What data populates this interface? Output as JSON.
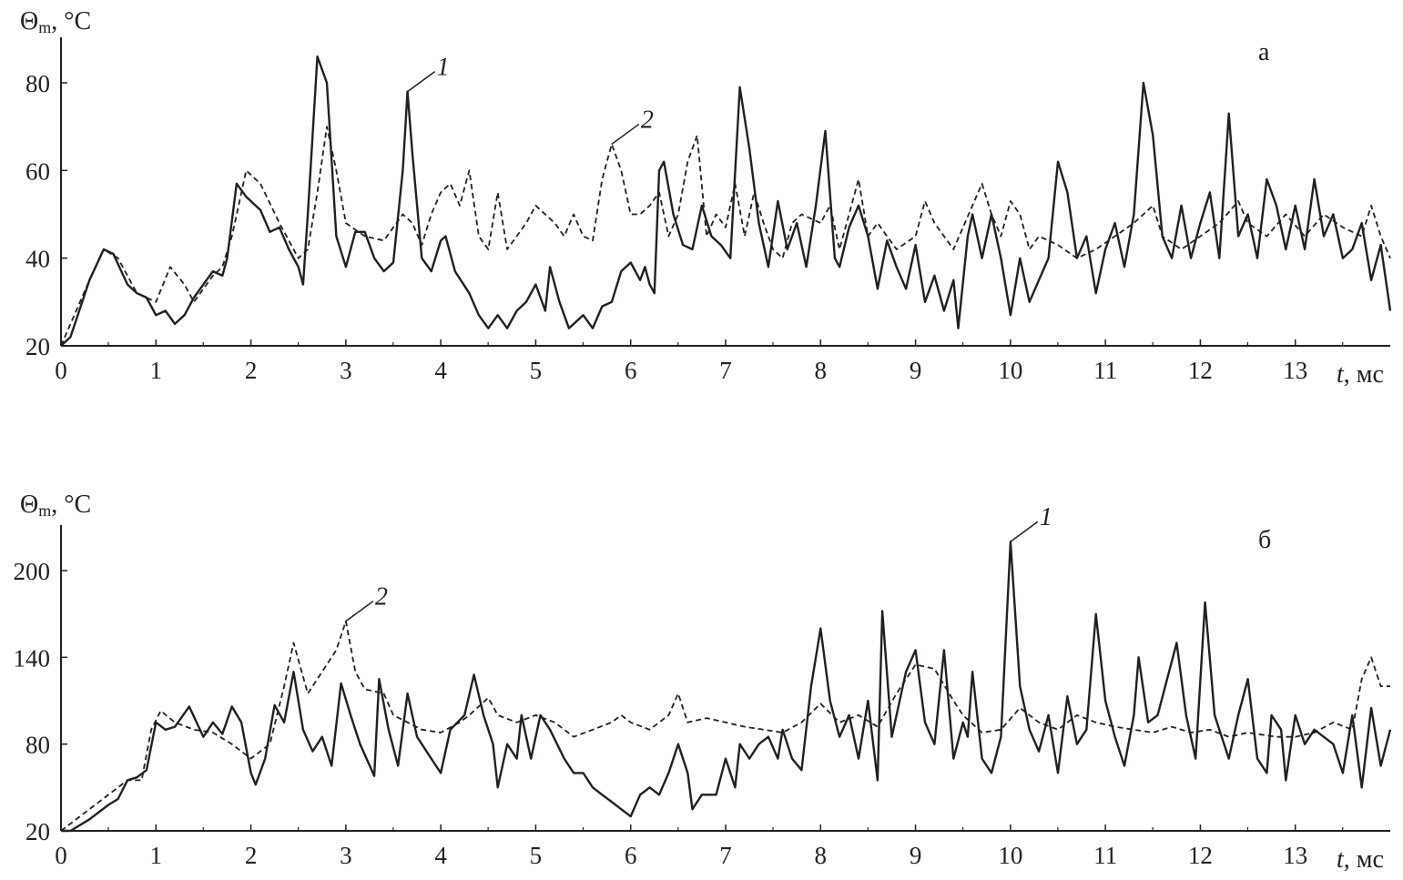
{
  "chart_data": [
    {
      "type": "line",
      "panel_label": "а",
      "ylabel": {
        "symbol": "Θ",
        "sub": "m",
        "unit": ", °C"
      },
      "xlabel": {
        "var": "t",
        "unit": ", мс"
      },
      "xlim": [
        0,
        14
      ],
      "ylim": [
        20,
        80
      ],
      "xticks": [
        0,
        1,
        2,
        3,
        4,
        5,
        6,
        7,
        8,
        9,
        10,
        11,
        12,
        13
      ],
      "yticks": [
        20,
        40,
        60,
        80
      ],
      "grid": false,
      "series": [
        {
          "name": "1",
          "style": "solid",
          "color": "#231f20",
          "x": [
            0,
            0.1,
            0.3,
            0.45,
            0.55,
            0.7,
            0.8,
            0.9,
            1.0,
            1.1,
            1.2,
            1.3,
            1.4,
            1.5,
            1.6,
            1.7,
            1.75,
            1.85,
            1.95,
            2.1,
            2.2,
            2.3,
            2.4,
            2.5,
            2.55,
            2.6,
            2.7,
            2.8,
            2.9,
            3.0,
            3.1,
            3.2,
            3.3,
            3.4,
            3.5,
            3.6,
            3.65,
            3.7,
            3.8,
            3.9,
            4.0,
            4.05,
            4.15,
            4.3,
            4.4,
            4.5,
            4.6,
            4.7,
            4.8,
            4.9,
            5.0,
            5.1,
            5.15,
            5.25,
            5.35,
            5.5,
            5.6,
            5.7,
            5.8,
            5.9,
            6.0,
            6.1,
            6.15,
            6.2,
            6.25,
            6.3,
            6.35,
            6.45,
            6.55,
            6.65,
            6.75,
            6.85,
            6.95,
            7.05,
            7.15,
            7.25,
            7.35,
            7.45,
            7.55,
            7.65,
            7.75,
            7.85,
            7.95,
            8.05,
            8.15,
            8.2,
            8.3,
            8.4,
            8.5,
            8.6,
            8.7,
            8.8,
            8.9,
            9.0,
            9.1,
            9.2,
            9.3,
            9.4,
            9.45,
            9.55,
            9.6,
            9.7,
            9.8,
            9.9,
            10.0,
            10.1,
            10.2,
            10.3,
            10.4,
            10.5,
            10.6,
            10.7,
            10.8,
            10.9,
            11.0,
            11.1,
            11.2,
            11.3,
            11.4,
            11.5,
            11.6,
            11.7,
            11.8,
            11.9,
            12.0,
            12.1,
            12.2,
            12.3,
            12.4,
            12.5,
            12.6,
            12.7,
            12.8,
            12.9,
            13.0,
            13.1,
            13.2,
            13.3,
            13.4,
            13.5,
            13.6,
            13.7,
            13.8,
            13.9,
            14.0
          ],
          "y": [
            20,
            22,
            35,
            42,
            41,
            34,
            32,
            31,
            27,
            28,
            25,
            27,
            31,
            34,
            37,
            36,
            40,
            57,
            54,
            51,
            46,
            47,
            42,
            38,
            34,
            50,
            86,
            80,
            45,
            38,
            46,
            46,
            40,
            37,
            39,
            60,
            78,
            64,
            40,
            37,
            44,
            45,
            37,
            32,
            27,
            24,
            27,
            24,
            28,
            30,
            34,
            28,
            38,
            30,
            24,
            27,
            24,
            29,
            30,
            37,
            39,
            35,
            38,
            34,
            32,
            60,
            62,
            50,
            43,
            42,
            52,
            45,
            43,
            40,
            79,
            65,
            48,
            38,
            53,
            42,
            48,
            38,
            52,
            69,
            40,
            38,
            47,
            52,
            45,
            33,
            44,
            38,
            33,
            43,
            30,
            36,
            28,
            35,
            24,
            45,
            50,
            40,
            50,
            40,
            27,
            40,
            30,
            35,
            40,
            62,
            55,
            40,
            45,
            32,
            42,
            48,
            38,
            50,
            80,
            68,
            45,
            40,
            52,
            40,
            48,
            55,
            40,
            73,
            45,
            50,
            40,
            58,
            52,
            42,
            52,
            42,
            58,
            45,
            50,
            40,
            42,
            48,
            35,
            43,
            28
          ]
        },
        {
          "name": "2",
          "style": "dashed",
          "color": "#231f20",
          "x": [
            0,
            0.3,
            0.45,
            0.6,
            0.8,
            1.0,
            1.15,
            1.3,
            1.4,
            1.6,
            1.7,
            1.8,
            1.95,
            2.1,
            2.3,
            2.5,
            2.6,
            2.7,
            2.8,
            2.9,
            3.0,
            3.2,
            3.4,
            3.6,
            3.7,
            3.8,
            3.9,
            4.0,
            4.1,
            4.2,
            4.3,
            4.4,
            4.5,
            4.6,
            4.7,
            4.9,
            5.0,
            5.2,
            5.3,
            5.4,
            5.5,
            5.6,
            5.7,
            5.8,
            5.9,
            6.0,
            6.1,
            6.2,
            6.3,
            6.4,
            6.5,
            6.6,
            6.7,
            6.8,
            6.9,
            7.0,
            7.1,
            7.2,
            7.3,
            7.4,
            7.5,
            7.6,
            7.7,
            7.8,
            8.0,
            8.1,
            8.2,
            8.4,
            8.5,
            8.6,
            8.7,
            8.8,
            9.0,
            9.1,
            9.2,
            9.3,
            9.4,
            9.5,
            9.6,
            9.7,
            9.8,
            9.9,
            10.0,
            10.1,
            10.2,
            10.3,
            10.5,
            10.7,
            10.9,
            11.1,
            11.3,
            11.5,
            11.6,
            11.8,
            12.0,
            12.2,
            12.4,
            12.5,
            12.7,
            12.9,
            13.1,
            13.3,
            13.5,
            13.7,
            13.8,
            13.9,
            14.0
          ],
          "y": [
            20,
            35,
            42,
            40,
            32,
            30,
            38,
            34,
            30,
            36,
            38,
            45,
            60,
            57,
            48,
            40,
            42,
            55,
            70,
            60,
            48,
            45,
            44,
            50,
            48,
            43,
            50,
            55,
            57,
            52,
            60,
            45,
            42,
            55,
            42,
            48,
            52,
            48,
            45,
            50,
            45,
            44,
            58,
            66,
            60,
            50,
            50,
            52,
            55,
            45,
            50,
            62,
            68,
            45,
            50,
            47,
            57,
            45,
            55,
            48,
            42,
            40,
            48,
            50,
            48,
            52,
            42,
            58,
            45,
            48,
            45,
            42,
            45,
            53,
            48,
            45,
            42,
            47,
            52,
            57,
            50,
            45,
            53,
            50,
            42,
            45,
            43,
            40,
            42,
            45,
            48,
            52,
            45,
            42,
            45,
            48,
            53,
            48,
            45,
            50,
            45,
            50,
            47,
            45,
            52,
            45,
            40
          ]
        }
      ],
      "annotations": [
        {
          "text": "1",
          "series": "1",
          "x": 3.65,
          "y": 78
        },
        {
          "text": "2",
          "series": "2",
          "x": 5.8,
          "y": 66
        }
      ]
    },
    {
      "type": "line",
      "panel_label": "б",
      "ylabel": {
        "symbol": "Θ",
        "sub": "m",
        "unit": ", °C"
      },
      "xlabel": {
        "var": "t",
        "unit": ", мс"
      },
      "xlim": [
        0,
        14
      ],
      "ylim": [
        20,
        200
      ],
      "xticks": [
        0,
        1,
        2,
        3,
        4,
        5,
        6,
        7,
        8,
        9,
        10,
        11,
        12,
        13
      ],
      "yticks": [
        20,
        80,
        140,
        200
      ],
      "grid": false,
      "series": [
        {
          "name": "1",
          "style": "solid",
          "color": "#231f20",
          "x": [
            0,
            0.1,
            0.3,
            0.5,
            0.6,
            0.7,
            0.8,
            0.9,
            1.0,
            1.1,
            1.2,
            1.35,
            1.5,
            1.6,
            1.7,
            1.8,
            1.9,
            2.0,
            2.05,
            2.15,
            2.25,
            2.35,
            2.45,
            2.55,
            2.65,
            2.75,
            2.85,
            2.95,
            3.05,
            3.15,
            3.3,
            3.35,
            3.45,
            3.55,
            3.65,
            3.75,
            3.9,
            4.0,
            4.1,
            4.25,
            4.35,
            4.45,
            4.55,
            4.6,
            4.7,
            4.8,
            4.85,
            4.95,
            5.05,
            5.15,
            5.3,
            5.4,
            5.5,
            5.6,
            5.7,
            5.8,
            5.9,
            6.0,
            6.1,
            6.2,
            6.3,
            6.4,
            6.5,
            6.6,
            6.65,
            6.75,
            6.9,
            7.0,
            7.1,
            7.15,
            7.25,
            7.35,
            7.45,
            7.55,
            7.6,
            7.7,
            7.8,
            7.9,
            8.0,
            8.1,
            8.2,
            8.3,
            8.4,
            8.5,
            8.6,
            8.65,
            8.75,
            8.9,
            9.0,
            9.1,
            9.2,
            9.3,
            9.4,
            9.5,
            9.55,
            9.6,
            9.7,
            9.8,
            9.9,
            10.0,
            10.1,
            10.2,
            10.3,
            10.4,
            10.5,
            10.6,
            10.7,
            10.8,
            10.9,
            11.0,
            11.1,
            11.2,
            11.3,
            11.35,
            11.45,
            11.55,
            11.75,
            11.85,
            11.95,
            12.05,
            12.15,
            12.3,
            12.4,
            12.5,
            12.6,
            12.7,
            12.75,
            12.85,
            12.9,
            13.0,
            13.1,
            13.2,
            13.4,
            13.5,
            13.6,
            13.7,
            13.8,
            13.9,
            14.0
          ],
          "y": [
            20,
            20,
            28,
            38,
            42,
            55,
            57,
            62,
            95,
            90,
            92,
            106,
            85,
            95,
            87,
            106,
            95,
            60,
            52,
            70,
            107,
            95,
            130,
            90,
            75,
            85,
            65,
            122,
            100,
            80,
            58,
            125,
            90,
            65,
            115,
            85,
            70,
            60,
            90,
            100,
            128,
            100,
            80,
            50,
            80,
            70,
            100,
            70,
            100,
            90,
            70,
            60,
            60,
            50,
            45,
            40,
            35,
            30,
            45,
            50,
            45,
            60,
            80,
            60,
            35,
            45,
            45,
            70,
            50,
            80,
            70,
            80,
            85,
            70,
            90,
            70,
            62,
            120,
            160,
            110,
            85,
            100,
            70,
            110,
            55,
            172,
            85,
            130,
            145,
            95,
            80,
            145,
            70,
            95,
            85,
            130,
            70,
            60,
            85,
            220,
            120,
            90,
            75,
            100,
            60,
            113,
            80,
            90,
            170,
            110,
            85,
            65,
            100,
            140,
            95,
            100,
            150,
            100,
            70,
            178,
            100,
            70,
            100,
            125,
            70,
            60,
            100,
            90,
            55,
            100,
            80,
            90,
            80,
            60,
            100,
            50,
            105,
            65,
            90
          ]
        },
        {
          "name": "2",
          "style": "dashed",
          "color": "#231f20",
          "x": [
            0,
            0.7,
            0.85,
            0.95,
            1.05,
            1.2,
            1.4,
            1.6,
            1.8,
            2.0,
            2.2,
            2.35,
            2.45,
            2.6,
            2.75,
            2.9,
            3.0,
            3.1,
            3.2,
            3.4,
            3.5,
            3.8,
            4.0,
            4.2,
            4.3,
            4.5,
            4.6,
            4.8,
            5.0,
            5.2,
            5.4,
            5.6,
            5.8,
            5.9,
            6.0,
            6.2,
            6.4,
            6.5,
            6.6,
            6.8,
            7.0,
            7.2,
            7.4,
            7.6,
            7.8,
            8.0,
            8.2,
            8.4,
            8.6,
            8.8,
            9.0,
            9.2,
            9.4,
            9.5,
            9.7,
            9.9,
            10.1,
            10.3,
            10.5,
            10.7,
            10.9,
            11.1,
            11.3,
            11.5,
            11.7,
            11.9,
            12.1,
            12.3,
            12.5,
            12.8,
            13.0,
            13.2,
            13.4,
            13.6,
            13.7,
            13.8,
            13.9,
            14.0
          ],
          "y": [
            20,
            55,
            55,
            90,
            103,
            95,
            90,
            88,
            80,
            70,
            80,
            120,
            150,
            115,
            130,
            145,
            165,
            130,
            118,
            115,
            100,
            90,
            88,
            95,
            100,
            112,
            100,
            95,
            100,
            95,
            85,
            90,
            95,
            100,
            95,
            90,
            100,
            115,
            95,
            98,
            95,
            92,
            90,
            88,
            95,
            108,
            95,
            100,
            92,
            115,
            135,
            132,
            110,
            100,
            88,
            90,
            105,
            95,
            90,
            100,
            95,
            92,
            90,
            88,
            92,
            88,
            90,
            85,
            88,
            85,
            85,
            88,
            95,
            90,
            125,
            140,
            120,
            120
          ]
        }
      ],
      "annotations": [
        {
          "text": "1",
          "series": "1",
          "x": 10.0,
          "y": 220
        },
        {
          "text": "2",
          "series": "2",
          "x": 3.0,
          "y": 165
        }
      ]
    }
  ]
}
